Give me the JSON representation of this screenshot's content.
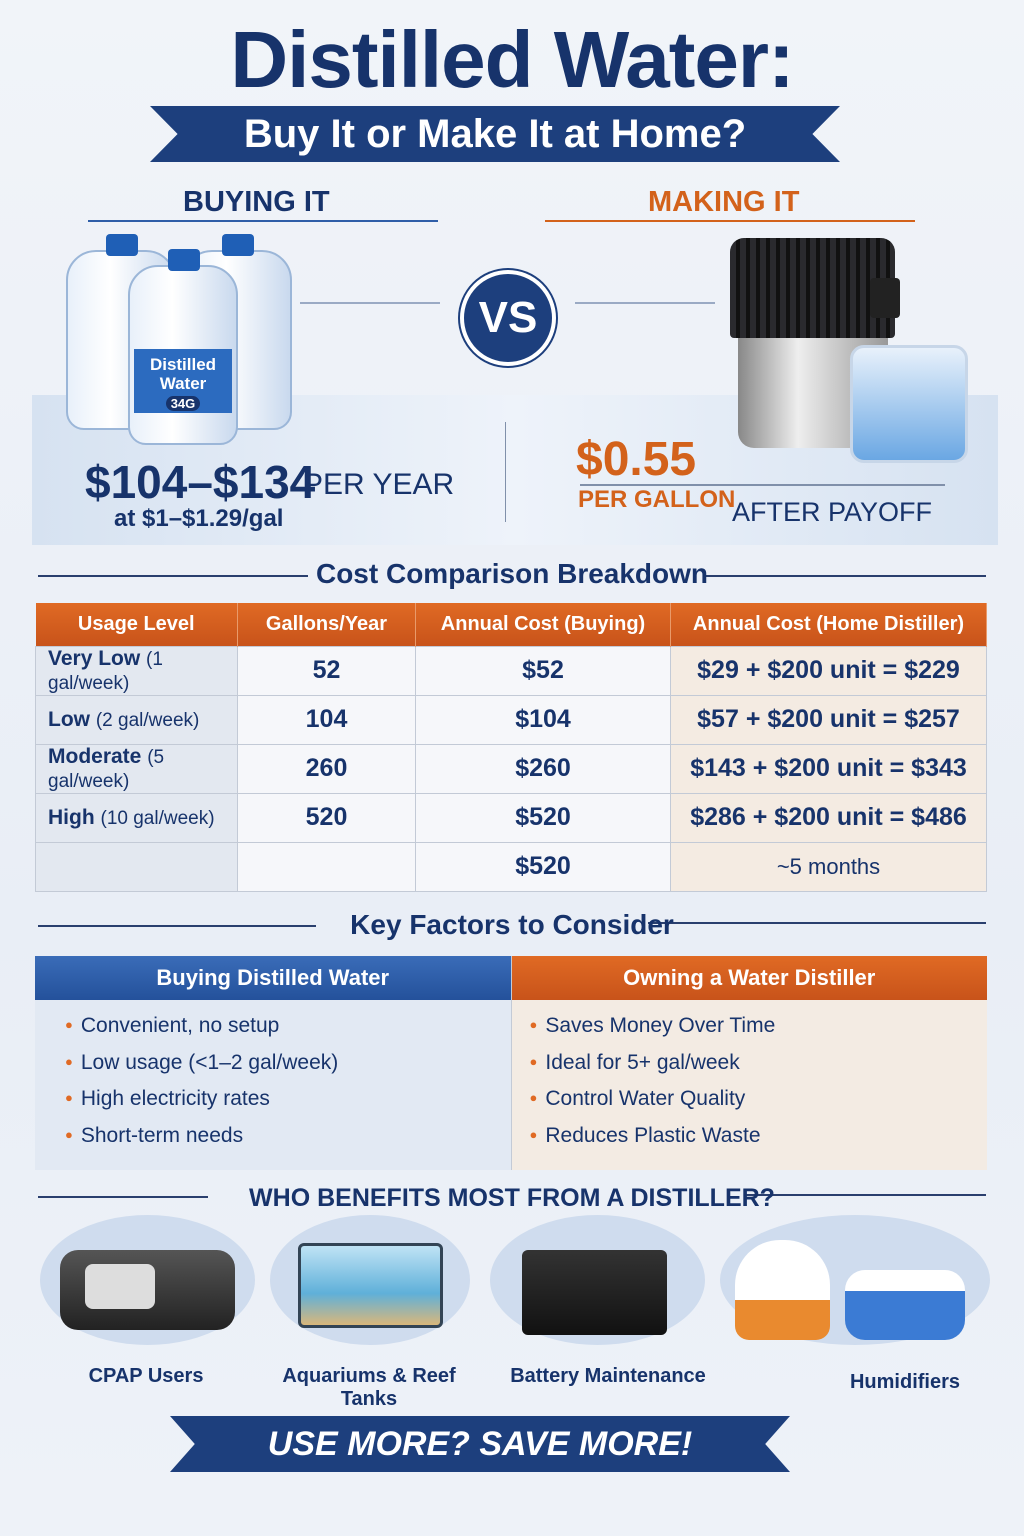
{
  "title": "Distilled Water:",
  "subtitle": "Buy It or Make It at Home?",
  "buying": {
    "heading": "BUYING IT",
    "jug_label": "Distilled Water",
    "jug_badge": "34G",
    "price": "$104–$134",
    "price_unit": "PER YEAR",
    "rate": "at $1–$1.29/gal"
  },
  "vs": "VS",
  "making": {
    "heading": "MAKING IT",
    "price": "$0.55",
    "price_unit": "PER GALLON",
    "note": "AFTER PAYOFF"
  },
  "comparison": {
    "heading": "Cost Comparison Breakdown",
    "columns": [
      "Usage Level",
      "Gallons/Year",
      "Annual Cost (Buying)",
      "Annual Cost (Home Distiller)"
    ],
    "rows": [
      {
        "level": "Very Low",
        "freq": "(1 gal/week)",
        "gallons": "52",
        "buying": "$52",
        "distiller": "$29 + $200 unit = $229"
      },
      {
        "level": "Low",
        "freq": "(2 gal/week)",
        "gallons": "104",
        "buying": "$104",
        "distiller": "$57 + $200 unit = $257"
      },
      {
        "level": "Moderate",
        "freq": "(5 gal/week)",
        "gallons": "260",
        "buying": "$260",
        "distiller": "$143 + $200 unit = $343"
      },
      {
        "level": "High",
        "freq": "(10 gal/week)",
        "gallons": "520",
        "buying": "$520",
        "distiller": "$286 + $200 unit = $486"
      },
      {
        "level": "",
        "freq": "",
        "gallons": "",
        "buying": "$520",
        "distiller": "~5 months"
      }
    ]
  },
  "factors": {
    "heading": "Key Factors to Consider",
    "buying": {
      "title": "Buying Distilled Water",
      "items": [
        "Convenient, no setup",
        "Low usage (<1–2 gal/week)",
        "High electricity rates",
        "Short-term needs"
      ]
    },
    "owning": {
      "title": "Owning a Water Distiller",
      "items": [
        "Saves Money Over Time",
        "Ideal for 5+ gal/week",
        "Control Water Quality",
        "Reduces Plastic Waste"
      ]
    }
  },
  "benefits": {
    "heading": "WHO BENEFITS MOST FROM A DISTILLER?",
    "items": [
      "CPAP Users",
      "Aquariums & Reef Tanks",
      "Battery Maintenance",
      "Humidifiers"
    ]
  },
  "footer": "USE MORE? SAVE MORE!",
  "colors": {
    "navy": "#17336b",
    "orange": "#d3621b",
    "blue": "#2f5ea8"
  }
}
